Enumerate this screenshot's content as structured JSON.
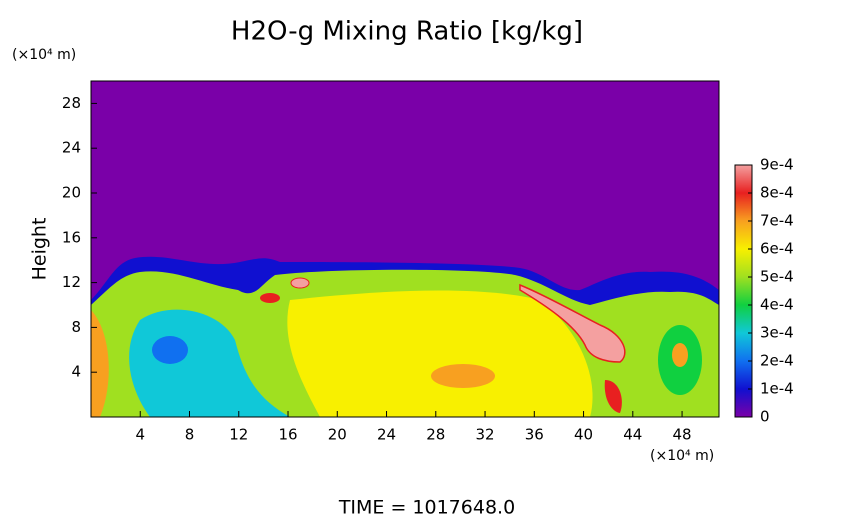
{
  "chart_data": {
    "type": "heatmap",
    "title": "H2O-g Mixing Ratio [kg/kg]",
    "ylabel": "Height",
    "xunit": "(×10⁴ m)",
    "yunit": "(×10⁴ m)",
    "footer": "TIME = 1017648.0",
    "xlim": [
      0,
      51
    ],
    "xticks": [
      4,
      8,
      12,
      16,
      20,
      24,
      28,
      32,
      36,
      40,
      44,
      48
    ],
    "ylim": [
      0,
      30
    ],
    "yticks": [
      4,
      8,
      12,
      16,
      20,
      24,
      28
    ],
    "colorbar": {
      "lim": [
        0,
        0.0009
      ],
      "ticks": [
        0,
        {
          "value": 0.0001,
          "label": "1e-4"
        },
        {
          "value": 0.0002,
          "label": "2e-4"
        },
        {
          "value": 0.0003,
          "label": "3e-4"
        },
        {
          "value": 0.0004,
          "label": "4e-4"
        },
        {
          "value": 0.0005,
          "label": "5e-4"
        },
        {
          "value": 0.0006,
          "label": "6e-4"
        },
        {
          "value": 0.0007,
          "label": "7e-4"
        },
        {
          "value": 0.0008,
          "label": "8e-4"
        },
        {
          "value": 0.0009,
          "label": "9e-4"
        }
      ],
      "colors": [
        "#7a00a8",
        "#1010d0",
        "#1070f0",
        "#10c8d8",
        "#10d040",
        "#a0e020",
        "#f8f000",
        "#f8a020",
        "#e82020",
        "#f4a0a0"
      ]
    }
  }
}
